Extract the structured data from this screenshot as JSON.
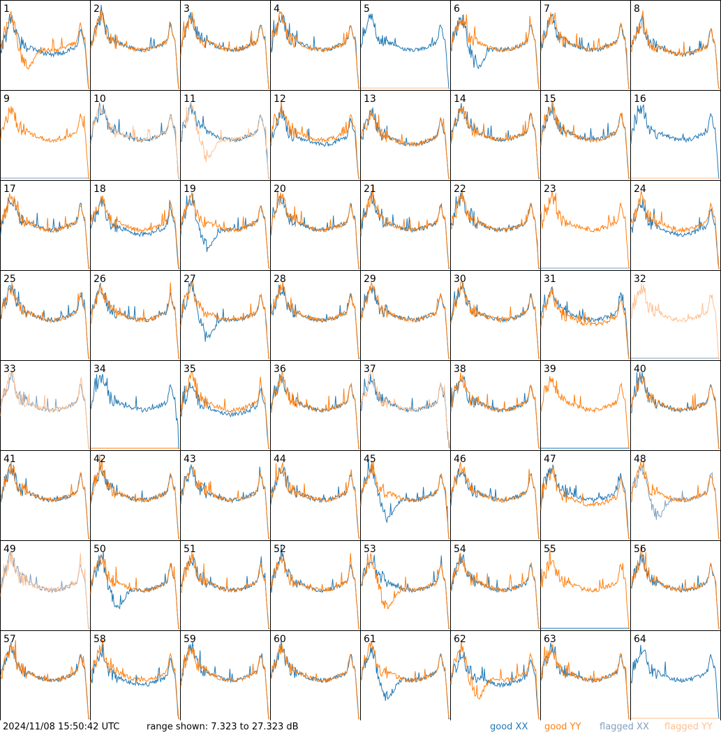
{
  "footer": {
    "timestamp": "2024/11/08 15:50:42 UTC",
    "range_label": "range shown: 7.323 to 27.323 dB",
    "legend": {
      "good_xx": "good XX",
      "good_yy": "good YY",
      "flagged_xx": "flagged XX",
      "flagged_yy": "flagged YY"
    }
  },
  "colors": {
    "good_xx": "#1f77b4",
    "good_yy": "#ff7f0e",
    "flagged_xx": "#7f9fbf",
    "flagged_yy": "#ffbf8f"
  },
  "chart_data": {
    "type": "line",
    "title": "",
    "ylim": [
      7.323,
      27.323
    ],
    "grid": false,
    "legend_position": "bottom-right",
    "layout": "8x8 panels",
    "series_names": [
      "good XX",
      "good YY",
      "flagged XX",
      "flagged YY"
    ],
    "panels": [
      {
        "id": "1",
        "xx": "flat",
        "yy": "droop",
        "xx_flag": false,
        "yy_flag": false
      },
      {
        "id": "2",
        "xx": "normal",
        "yy": "normal",
        "xx_flag": false,
        "yy_flag": false
      },
      {
        "id": "3",
        "xx": "normal",
        "yy": "normal",
        "xx_flag": false,
        "yy_flag": false
      },
      {
        "id": "4",
        "xx": "normal",
        "yy": "normal",
        "xx_flag": false,
        "yy_flag": false
      },
      {
        "id": "5",
        "xx": "normal",
        "yy": "dead",
        "xx_flag": false,
        "yy_flag": true
      },
      {
        "id": "6",
        "xx": "droop",
        "yy": "normal",
        "xx_flag": false,
        "yy_flag": false
      },
      {
        "id": "7",
        "xx": "normal",
        "yy": "normal",
        "xx_flag": false,
        "yy_flag": false
      },
      {
        "id": "8",
        "xx": "flat",
        "yy": "flat",
        "xx_flag": false,
        "yy_flag": false
      },
      {
        "id": "9",
        "xx": "dead",
        "yy": "normal",
        "xx_flag": true,
        "yy_flag": false
      },
      {
        "id": "10",
        "xx": "normal",
        "yy": "normal",
        "xx_flag": false,
        "yy_flag": true
      },
      {
        "id": "11",
        "xx": "normal",
        "yy": "droop",
        "xx_flag": false,
        "yy_flag": true
      },
      {
        "id": "12",
        "xx": "flat",
        "yy": "normal",
        "xx_flag": false,
        "yy_flag": false
      },
      {
        "id": "13",
        "xx": "flat",
        "yy": "flat",
        "xx_flag": false,
        "yy_flag": false
      },
      {
        "id": "14",
        "xx": "normal",
        "yy": "normal",
        "xx_flag": false,
        "yy_flag": false
      },
      {
        "id": "15",
        "xx": "normal",
        "yy": "normal",
        "xx_flag": false,
        "yy_flag": false
      },
      {
        "id": "16",
        "xx": "normal",
        "yy": "dead",
        "xx_flag": false,
        "yy_flag": true
      },
      {
        "id": "17",
        "xx": "normal",
        "yy": "normal",
        "xx_flag": false,
        "yy_flag": false
      },
      {
        "id": "18",
        "xx": "flat",
        "yy": "normal",
        "xx_flag": false,
        "yy_flag": false
      },
      {
        "id": "19",
        "xx": "droop",
        "yy": "normal",
        "xx_flag": false,
        "yy_flag": false
      },
      {
        "id": "20",
        "xx": "normal",
        "yy": "normal",
        "xx_flag": false,
        "yy_flag": false
      },
      {
        "id": "21",
        "xx": "normal",
        "yy": "normal",
        "xx_flag": false,
        "yy_flag": false
      },
      {
        "id": "22",
        "xx": "normal",
        "yy": "normal",
        "xx_flag": false,
        "yy_flag": false
      },
      {
        "id": "23",
        "xx": "dead",
        "yy": "normal",
        "xx_flag": true,
        "yy_flag": false
      },
      {
        "id": "24",
        "xx": "flat",
        "yy": "normal",
        "xx_flag": false,
        "yy_flag": false
      },
      {
        "id": "25",
        "xx": "normal",
        "yy": "normal",
        "xx_flag": false,
        "yy_flag": false
      },
      {
        "id": "26",
        "xx": "normal",
        "yy": "normal",
        "xx_flag": false,
        "yy_flag": false
      },
      {
        "id": "27",
        "xx": "droop",
        "yy": "normal",
        "xx_flag": false,
        "yy_flag": false
      },
      {
        "id": "28",
        "xx": "normal",
        "yy": "normal",
        "xx_flag": false,
        "yy_flag": false
      },
      {
        "id": "29",
        "xx": "normal",
        "yy": "normal",
        "xx_flag": false,
        "yy_flag": false
      },
      {
        "id": "30",
        "xx": "normal",
        "yy": "normal",
        "xx_flag": false,
        "yy_flag": false
      },
      {
        "id": "31",
        "xx": "normal",
        "yy": "flat",
        "xx_flag": false,
        "yy_flag": false
      },
      {
        "id": "32",
        "xx": "dead",
        "yy": "normal",
        "xx_flag": true,
        "yy_flag": true
      },
      {
        "id": "33",
        "xx": "normal",
        "yy": "normal",
        "xx_flag": true,
        "yy_flag": true
      },
      {
        "id": "34",
        "xx": "normal",
        "yy": "dead",
        "xx_flag": false,
        "yy_flag": false
      },
      {
        "id": "35",
        "xx": "flat",
        "yy": "normal",
        "xx_flag": false,
        "yy_flag": false
      },
      {
        "id": "36",
        "xx": "normal",
        "yy": "normal",
        "xx_flag": false,
        "yy_flag": false
      },
      {
        "id": "37",
        "xx": "normal",
        "yy": "normal",
        "xx_flag": false,
        "yy_flag": true
      },
      {
        "id": "38",
        "xx": "normal",
        "yy": "normal",
        "xx_flag": false,
        "yy_flag": false
      },
      {
        "id": "39",
        "xx": "dead",
        "yy": "normal",
        "xx_flag": false,
        "yy_flag": false
      },
      {
        "id": "40",
        "xx": "normal",
        "yy": "normal",
        "xx_flag": false,
        "yy_flag": false
      },
      {
        "id": "41",
        "xx": "normal",
        "yy": "normal",
        "xx_flag": false,
        "yy_flag": false
      },
      {
        "id": "42",
        "xx": "normal",
        "yy": "normal",
        "xx_flag": false,
        "yy_flag": false
      },
      {
        "id": "43",
        "xx": "normal",
        "yy": "normal",
        "xx_flag": false,
        "yy_flag": false
      },
      {
        "id": "44",
        "xx": "normal",
        "yy": "normal",
        "xx_flag": false,
        "yy_flag": false
      },
      {
        "id": "45",
        "xx": "droop",
        "yy": "normal",
        "xx_flag": false,
        "yy_flag": false
      },
      {
        "id": "46",
        "xx": "normal",
        "yy": "normal",
        "xx_flag": false,
        "yy_flag": false
      },
      {
        "id": "47",
        "xx": "normal",
        "yy": "flat",
        "xx_flag": false,
        "yy_flag": false
      },
      {
        "id": "48",
        "xx": "droop",
        "yy": "normal",
        "xx_flag": true,
        "yy_flag": false
      },
      {
        "id": "49",
        "xx": "normal",
        "yy": "normal",
        "xx_flag": true,
        "yy_flag": true
      },
      {
        "id": "50",
        "xx": "droop",
        "yy": "normal",
        "xx_flag": false,
        "yy_flag": false
      },
      {
        "id": "51",
        "xx": "normal",
        "yy": "normal",
        "xx_flag": false,
        "yy_flag": false
      },
      {
        "id": "52",
        "xx": "normal",
        "yy": "normal",
        "xx_flag": false,
        "yy_flag": false
      },
      {
        "id": "53",
        "xx": "normal",
        "yy": "droop",
        "xx_flag": false,
        "yy_flag": false
      },
      {
        "id": "54",
        "xx": "normal",
        "yy": "normal",
        "xx_flag": false,
        "yy_flag": false
      },
      {
        "id": "55",
        "xx": "dead",
        "yy": "normal",
        "xx_flag": false,
        "yy_flag": false
      },
      {
        "id": "56",
        "xx": "normal",
        "yy": "normal",
        "xx_flag": false,
        "yy_flag": false
      },
      {
        "id": "57",
        "xx": "normal",
        "yy": "normal",
        "xx_flag": false,
        "yy_flag": false
      },
      {
        "id": "58",
        "xx": "flat",
        "yy": "normal",
        "xx_flag": false,
        "yy_flag": false
      },
      {
        "id": "59",
        "xx": "normal",
        "yy": "normal",
        "xx_flag": false,
        "yy_flag": false
      },
      {
        "id": "60",
        "xx": "normal",
        "yy": "normal",
        "xx_flag": false,
        "yy_flag": false
      },
      {
        "id": "61",
        "xx": "droop",
        "yy": "normal",
        "xx_flag": false,
        "yy_flag": false
      },
      {
        "id": "62",
        "xx": "flat",
        "yy": "droop",
        "xx_flag": false,
        "yy_flag": false
      },
      {
        "id": "63",
        "xx": "normal",
        "yy": "normal",
        "xx_flag": false,
        "yy_flag": false
      },
      {
        "id": "64",
        "xx": "normal",
        "yy": "dead",
        "xx_flag": false,
        "yy_flag": true
      }
    ]
  }
}
